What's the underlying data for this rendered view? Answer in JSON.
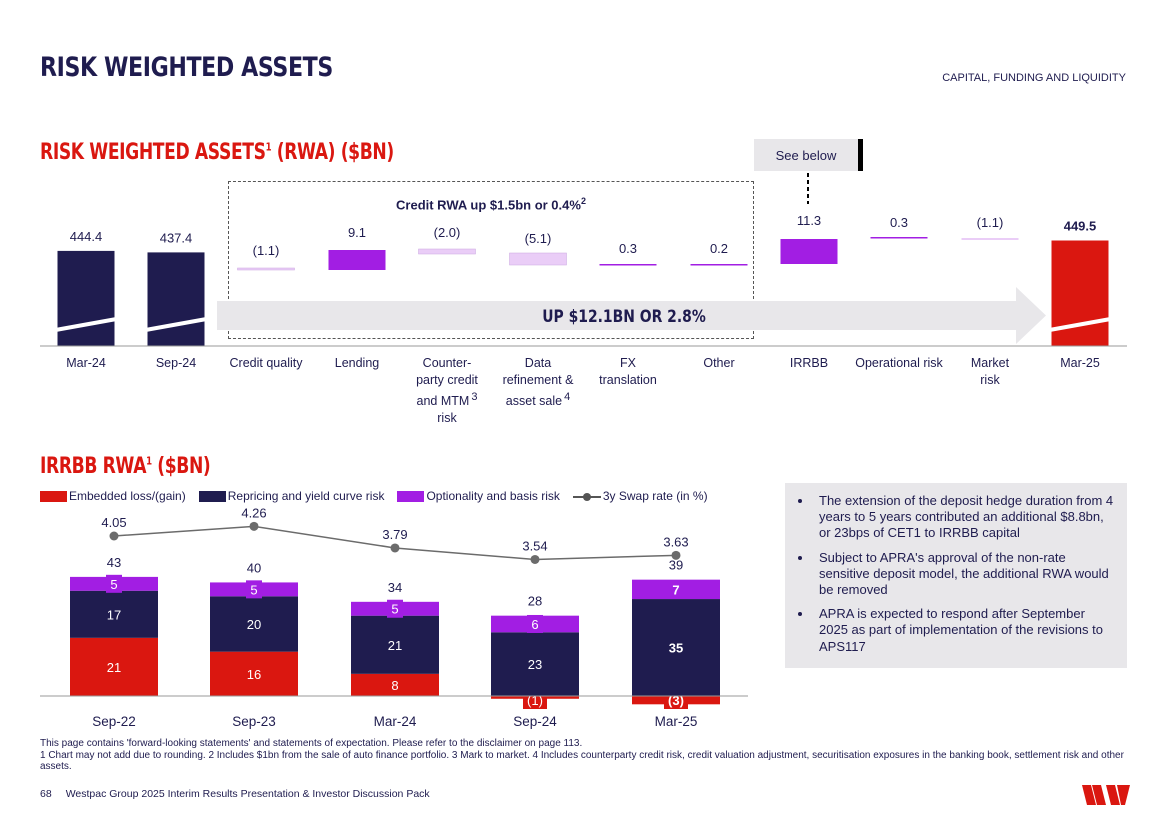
{
  "header": {
    "title": "RISK WEIGHTED ASSETS",
    "section": "CAPITAL, FUNDING AND LIQUIDITY"
  },
  "rwa_section": {
    "title": "RISK WEIGHTED ASSETS",
    "title_sup": "1",
    "title_suffix": " (RWA) ($BN)",
    "see_below": "See below",
    "credit_box_title": "Credit RWA up $1.5bn or 0.4%",
    "credit_box_sup": "2",
    "arrow_label": "UP $12.1BN OR 2.8%"
  },
  "irrbb_section": {
    "title": "IRRBB RWA",
    "title_sup": "1",
    "title_suffix": " ($BN)"
  },
  "legend": {
    "embedded": "Embedded loss/(gain)",
    "repricing": "Repricing and yield curve risk",
    "optionality": "Optionality and basis risk",
    "swap": "3y Swap rate (in %)"
  },
  "info_box": {
    "bullets": [
      "The extension of the deposit hedge duration from 4 years to 5 years contributed an additional $8.8bn, or 23bps of CET1 to IRRBB capital",
      "Subject to APRA's approval of the non-rate sensitive deposit model, the additional RWA would be removed",
      "APRA is expected to respond after September 2025 as part of implementation of the revisions to APS117"
    ]
  },
  "footnotes": {
    "line1": "This page contains 'forward-looking statements' and statements of expectation. Please refer to the disclaimer on page 113.",
    "line2": "1 Chart may not add due to rounding. 2 Includes $1bn from the sale of auto finance portfolio. 3 Mark to market. 4 Includes counterparty credit risk, credit valuation adjustment, securitisation exposures in the banking book, settlement risk and other assets."
  },
  "footer": {
    "page_number": "68",
    "text": "Westpac Group 2025 Interim Results Presentation & Investor Discussion Pack"
  },
  "colors": {
    "navy": "#1f1c4f",
    "red": "#da1710",
    "purple": "#a21ee3",
    "light_purple": "#eacdf7",
    "grey_panel": "#e8e7ea"
  },
  "chart_data": [
    {
      "type": "bar",
      "subtype": "waterfall",
      "title": "RISK WEIGHTED ASSETS (RWA) ($BN)",
      "categories": [
        "Mar-24",
        "Sep-24",
        "Credit quality",
        "Lending",
        "Counter-party credit and MTM risk",
        "Data refinement & asset sale",
        "FX translation",
        "Other",
        "IRRBB",
        "Operational risk",
        "Market risk",
        "Mar-25"
      ],
      "category_lines": [
        [
          "Mar-24"
        ],
        [
          "Sep-24"
        ],
        [
          "Credit quality"
        ],
        [
          "Lending"
        ],
        [
          "Counter-",
          "party credit",
          "and MTM",
          "risk"
        ],
        [
          "Data",
          "refinement &",
          "asset sale"
        ],
        [
          "FX",
          "translation"
        ],
        [
          "Other"
        ],
        [
          "IRRBB"
        ],
        [
          "Operational risk"
        ],
        [
          "Market",
          "risk"
        ],
        [
          "Mar-25"
        ]
      ],
      "category_sups": [
        "",
        "",
        "",
        "",
        "3",
        "4",
        "",
        "",
        "",
        "",
        "",
        ""
      ],
      "values": [
        444.4,
        437.4,
        -1.1,
        9.1,
        -2.0,
        -5.1,
        0.3,
        0.2,
        11.3,
        0.3,
        -1.1,
        449.5
      ],
      "labels": [
        "444.4",
        "437.4",
        "(1.1)",
        "9.1",
        "(2.0)",
        "(5.1)",
        "0.3",
        "0.2",
        "11.3",
        "0.3",
        "(1.1)",
        "449.5"
      ],
      "kinds": [
        "total",
        "total",
        "delta",
        "delta",
        "delta",
        "delta",
        "delta",
        "delta",
        "delta",
        "delta",
        "delta",
        "total"
      ],
      "annotations": [
        "Credit RWA up $1.5bn or 0.4%",
        "UP $12.1BN OR 2.8%"
      ]
    },
    {
      "type": "bar",
      "subtype": "stacked_with_line",
      "title": "IRRBB RWA ($BN)",
      "categories": [
        "Sep-22",
        "Sep-23",
        "Mar-24",
        "Sep-24",
        "Mar-25"
      ],
      "series": [
        {
          "name": "Embedded loss/(gain)",
          "values": [
            21,
            16,
            8,
            -1,
            -3
          ],
          "labels": [
            "21",
            "16",
            "8",
            "(1)",
            "(3)"
          ]
        },
        {
          "name": "Repricing and yield curve risk",
          "values": [
            17,
            20,
            21,
            23,
            35
          ],
          "labels": [
            "17",
            "20",
            "21",
            "23",
            "35"
          ]
        },
        {
          "name": "Optionality and basis risk",
          "values": [
            5,
            5,
            5,
            6,
            7
          ],
          "labels": [
            "5",
            "5",
            "5",
            "6",
            "7"
          ]
        }
      ],
      "totals": [
        43,
        40,
        34,
        28,
        39
      ],
      "totals_labels": [
        "43",
        "40",
        "34",
        "28",
        "39"
      ],
      "line_series": {
        "name": "3y Swap rate (in %)",
        "values": [
          4.05,
          4.26,
          3.79,
          3.54,
          3.63
        ],
        "labels": [
          "4.05",
          "4.26",
          "3.79",
          "3.54",
          "3.63"
        ]
      }
    }
  ]
}
